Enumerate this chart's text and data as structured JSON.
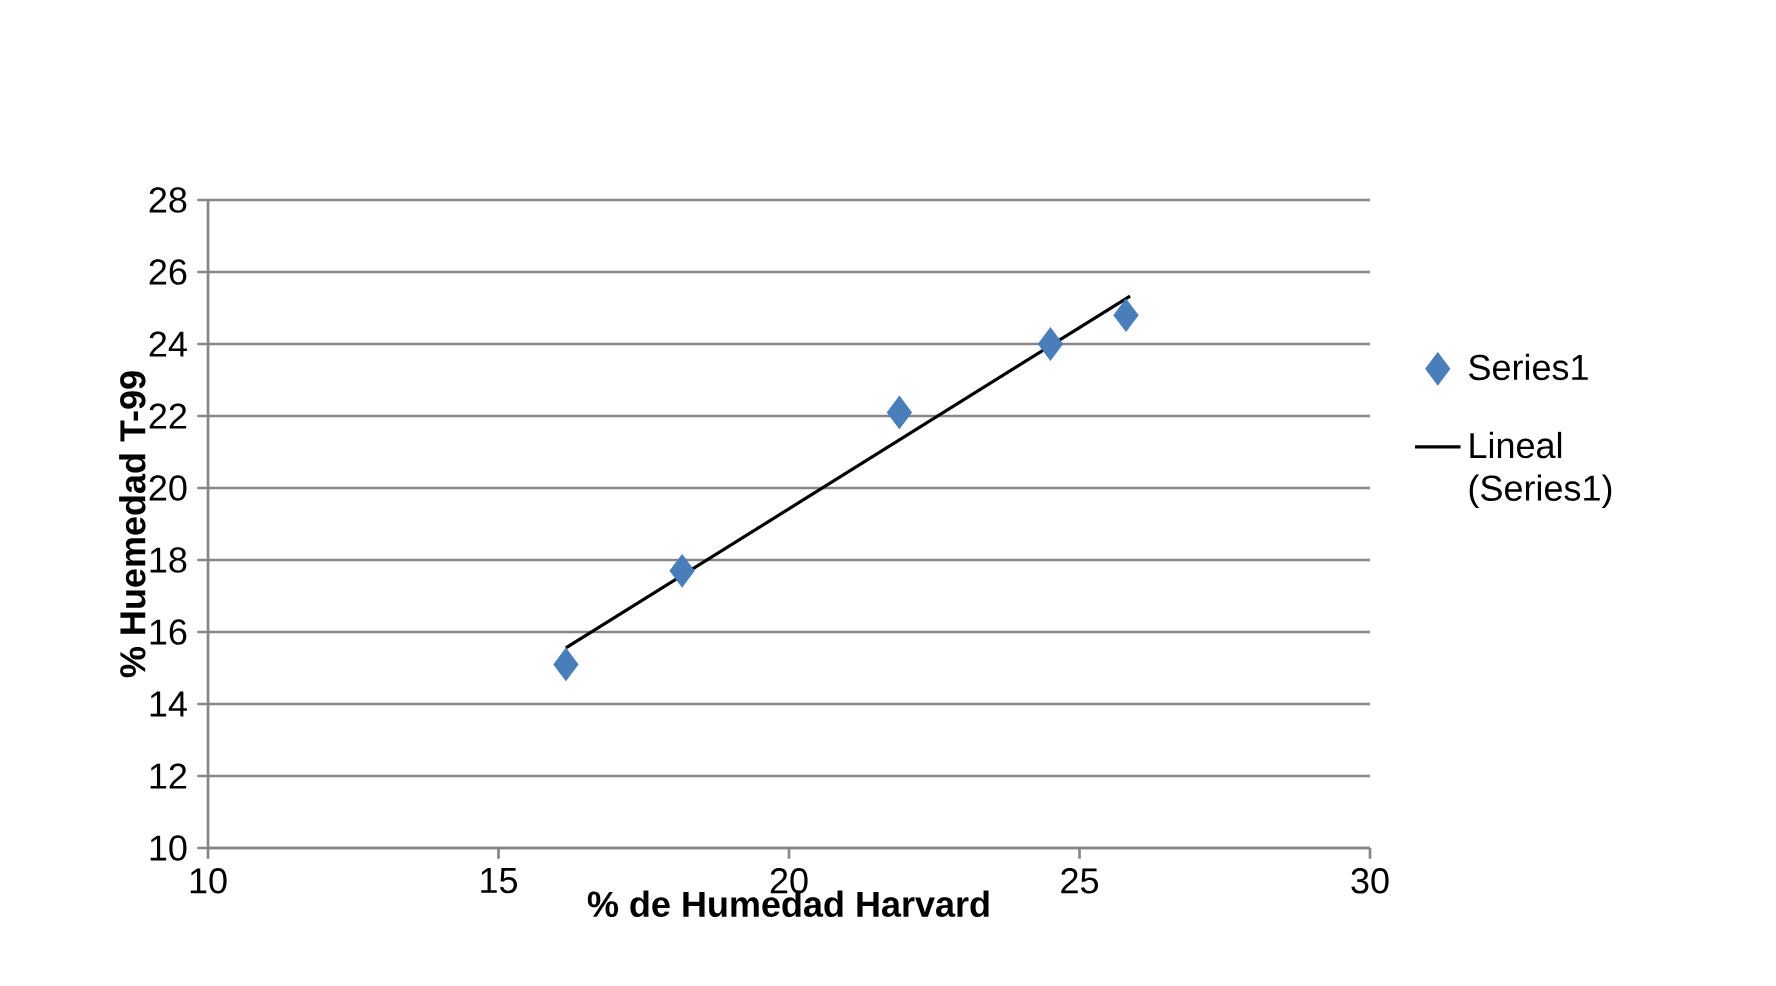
{
  "chart_data": {
    "type": "scatter",
    "xlabel": "% de Humedad Harvard",
    "ylabel": "% Huemedad T-99",
    "xlim": [
      10,
      30
    ],
    "xticks": [
      10,
      15,
      20,
      25,
      30
    ],
    "ylim": [
      10,
      28
    ],
    "yticks": [
      10,
      12,
      14,
      16,
      18,
      20,
      22,
      24,
      26,
      28
    ],
    "grid": "y",
    "legend": "right",
    "series": [
      {
        "name": "Series1",
        "color": "#4a7ebb",
        "marker": "diamond",
        "x": [
          16.16,
          18.16,
          21.9,
          24.5,
          25.8
        ],
        "values": [
          15.1,
          17.7,
          22.1,
          24.0,
          24.8
        ]
      },
      {
        "name": "Lineal (Series1)",
        "type": "line",
        "color": "#000000",
        "marker": "none",
        "line_style": "solid",
        "x": [
          16.16,
          25.87
        ],
        "values": [
          15.56,
          25.33
        ]
      }
    ]
  }
}
